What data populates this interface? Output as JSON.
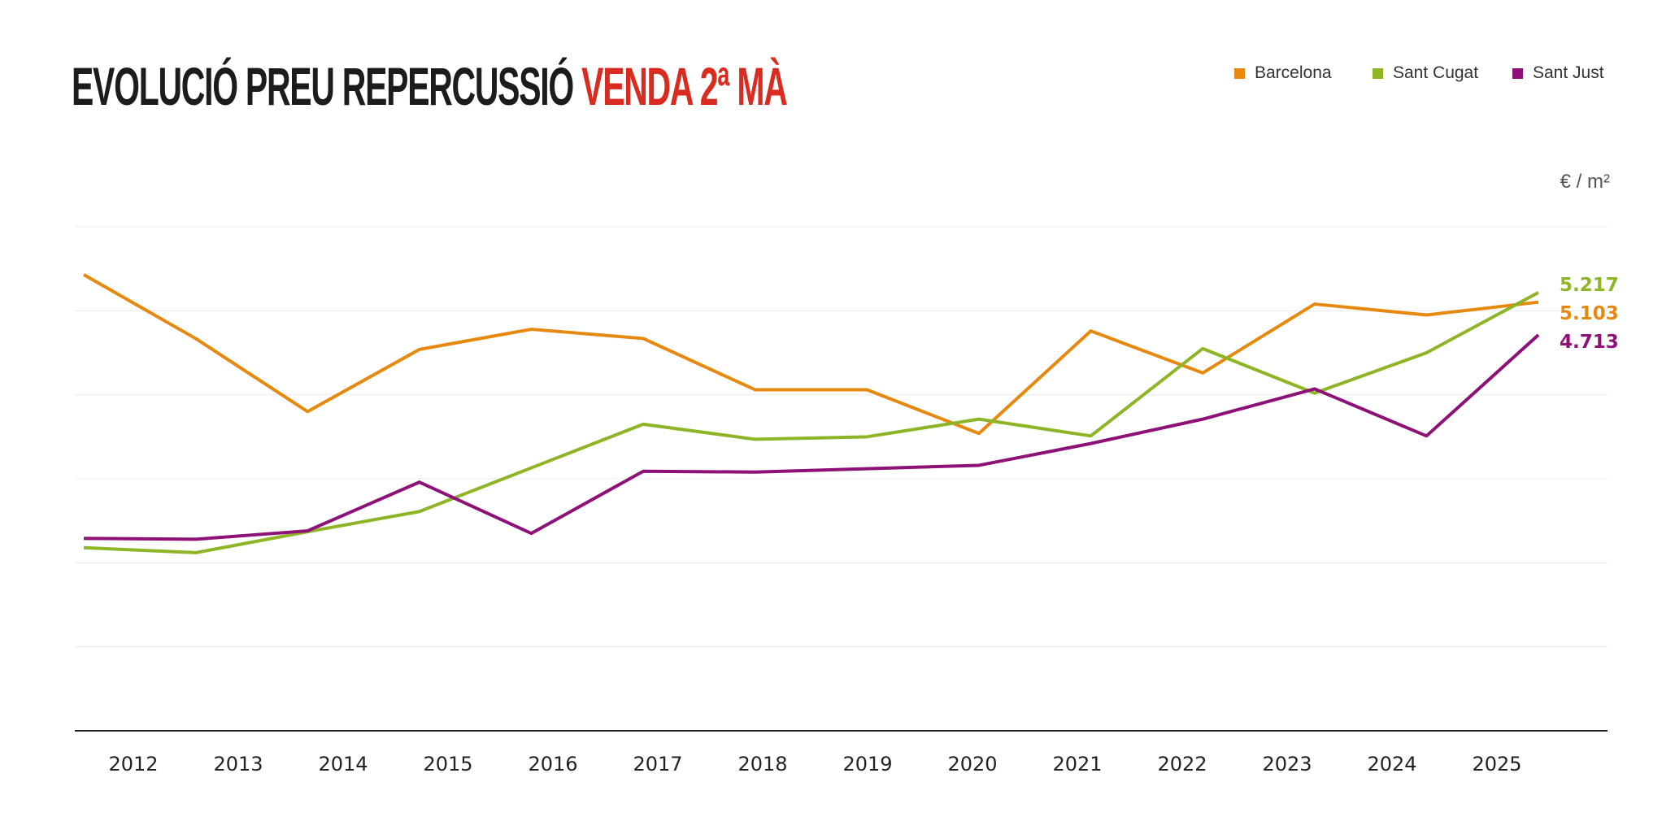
{
  "title": {
    "main": "EVOLUCIÓ PREU REPERCUSSIÓ",
    "accent": "VENDA 2ª MÀ"
  },
  "unit": "€ / m²",
  "colors": {
    "Barcelona": "#e8890f",
    "Sant Cugat": "#8db526",
    "Sant Just": "#8e1178",
    "accent": "#d92b1f"
  },
  "chart_data": {
    "type": "line",
    "title": "EVOLUCIÓ PREU REPERCUSSIÓ VENDA 2ª MÀ",
    "ylabel": "€ / m²",
    "xlabel": "",
    "ylim": [
      0,
      6000
    ],
    "grid": true,
    "legend": "top-right",
    "categories": [
      "2012",
      "2013",
      "2014",
      "2015",
      "2016",
      "2017",
      "2018",
      "2019",
      "2020",
      "2021",
      "2022",
      "2023",
      "2024",
      "2025"
    ],
    "series": [
      {
        "name": "Barcelona",
        "values": [
          5430,
          4670,
          3800,
          4540,
          4780,
          4670,
          4060,
          4060,
          3540,
          4760,
          4260,
          5080,
          4950,
          5103
        ],
        "end_label": "5.103"
      },
      {
        "name": "Sant Cugat",
        "values": [
          2180,
          2120,
          2370,
          2610,
          3130,
          3650,
          3470,
          3500,
          3710,
          3510,
          4550,
          4020,
          4500,
          5217
        ],
        "end_label": "5.217"
      },
      {
        "name": "Sant Just",
        "values": [
          2290,
          2280,
          2380,
          2960,
          2350,
          3090,
          3080,
          3120,
          3160,
          3420,
          3710,
          4070,
          3510,
          4713
        ],
        "end_label": "4.713"
      }
    ]
  }
}
